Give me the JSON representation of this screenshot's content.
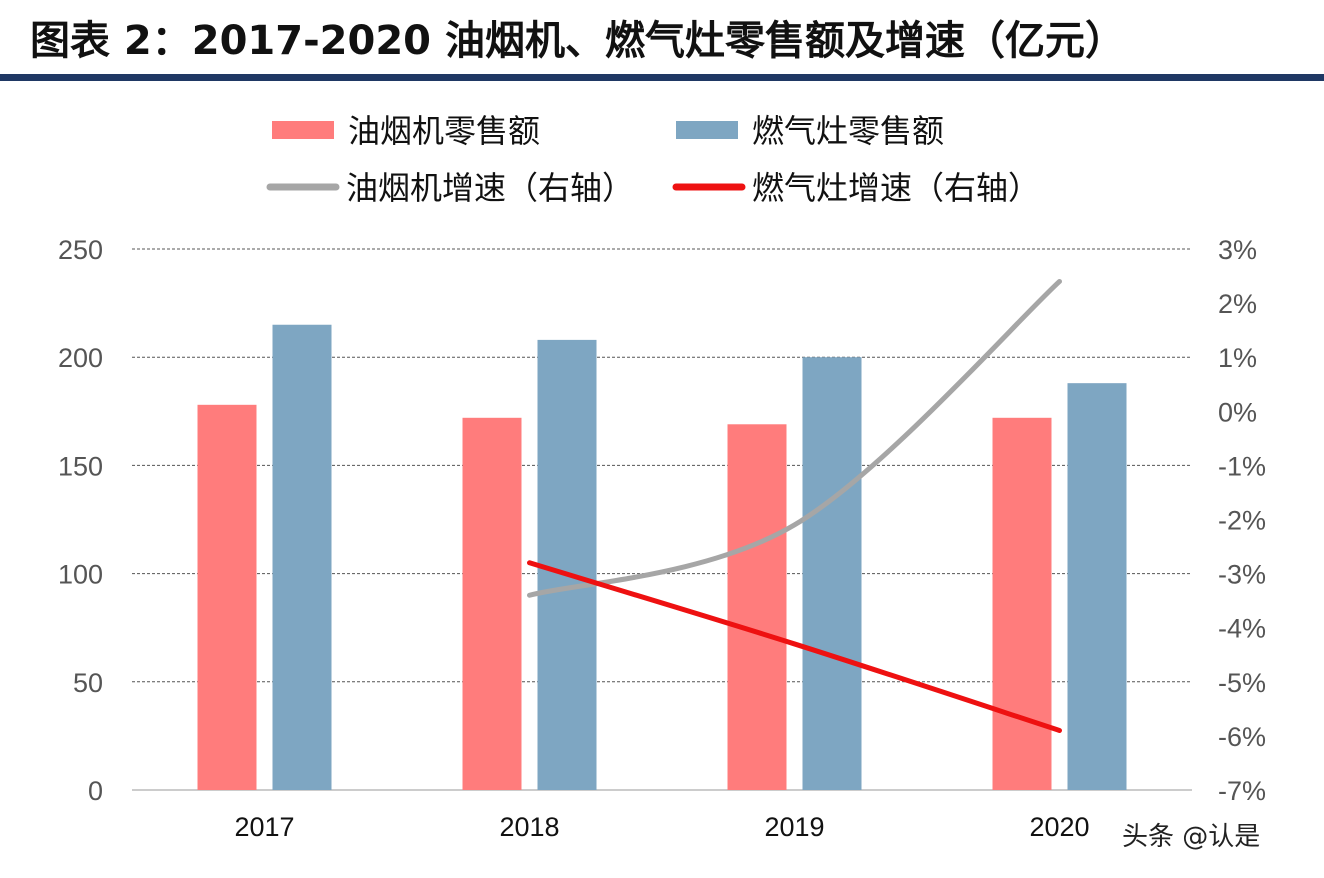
{
  "title": "图表 2：2017-2020 油烟机、燃气灶零售额及增速（亿元）",
  "watermark": "头条 @认是",
  "chart_data": {
    "type": "bar+line",
    "categories": [
      "2017",
      "2018",
      "2019",
      "2020"
    ],
    "left_axis": {
      "ylim": [
        0,
        250
      ],
      "ticks": [
        "0",
        "50",
        "100",
        "150",
        "200",
        "250"
      ]
    },
    "right_axis": {
      "ylim": [
        -7,
        3
      ],
      "ticks": [
        "-7%",
        "-6%",
        "-5%",
        "-4%",
        "-3%",
        "-2%",
        "-1%",
        "0%",
        "1%",
        "2%",
        "3%"
      ]
    },
    "grid": true,
    "legend": "top",
    "series": [
      {
        "name": "油烟机零售额",
        "type": "bar",
        "axis": "left",
        "color": "#ff7c7c",
        "values": [
          178,
          172,
          169,
          172
        ]
      },
      {
        "name": "燃气灶零售额",
        "type": "bar",
        "axis": "left",
        "color": "#7ea6c2",
        "values": [
          215,
          208,
          200,
          188
        ]
      },
      {
        "name": "油烟机增速（右轴）",
        "type": "line",
        "axis": "right",
        "color": "#a6a6a6",
        "values": [
          null,
          -3.4,
          -2.1,
          2.4
        ]
      },
      {
        "name": "燃气灶增速（右轴）",
        "type": "line",
        "axis": "right",
        "color": "#ee1111",
        "values": [
          null,
          -2.8,
          -4.3,
          -5.9
        ]
      }
    ]
  }
}
